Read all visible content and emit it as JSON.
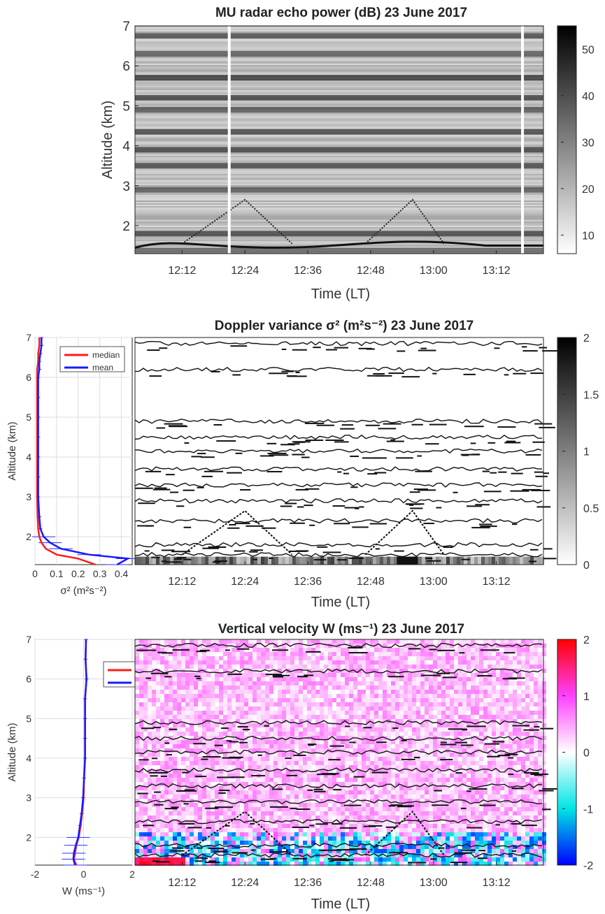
{
  "chart_data": [
    {
      "type": "heatmap",
      "title": "MU radar echo power (dB) 23 June 2017",
      "xlabel": "Time (LT)",
      "ylabel": "Altitude (km)",
      "xticks": [
        "12:12",
        "12:24",
        "12:36",
        "12:48",
        "13:00",
        "13:12"
      ],
      "xlim": [
        "12:03",
        "13:21"
      ],
      "yticks": [
        2,
        3,
        4,
        5,
        6,
        7
      ],
      "ylim": [
        1.3,
        7
      ],
      "colorbar": {
        "ticks": [
          10,
          20,
          30,
          40,
          50
        ],
        "range": [
          6,
          55
        ],
        "colormap": "white-to-black"
      },
      "data_gaps_at": [
        "12:21",
        "13:17"
      ],
      "echo_layers_km": [
        1.8,
        2.9,
        3.5,
        3.9,
        4.35,
        4.9,
        5.2,
        5.7,
        6.3,
        6.75
      ],
      "cusp_features": [
        {
          "start": "12:12",
          "peak": "12:24",
          "end": "12:33",
          "peak_km": 2.65
        },
        {
          "start": "12:47",
          "peak": "12:56",
          "end": "13:02",
          "peak_km": 2.65
        }
      ]
    },
    {
      "type": "heatmap",
      "title": "Doppler variance σ² (m²s⁻²) 23 June 2017",
      "xlabel": "Time (LT)",
      "ylabel": "",
      "xticks": [
        "12:12",
        "12:24",
        "12:36",
        "12:48",
        "13:00",
        "13:12"
      ],
      "colorbar": {
        "ticks": [
          0,
          0.5,
          1,
          1.5,
          2
        ],
        "range": [
          0,
          2
        ],
        "colormap": "white-to-black"
      },
      "profile": {
        "ylabel": "Altitude (km)",
        "xlabel": "σ² (m²s⁻²)",
        "xticks": [
          0,
          0.1,
          0.2,
          0.3,
          0.4
        ],
        "xlim": [
          0,
          0.45
        ],
        "yticks": [
          2,
          3,
          4,
          5,
          6,
          7
        ],
        "ylim": [
          1.3,
          7
        ],
        "legend": {
          "position": "top",
          "entries": [
            "median",
            "mean"
          ]
        },
        "altitude_km": [
          1.3,
          1.45,
          1.55,
          1.7,
          1.85,
          2.0,
          2.2,
          2.5,
          3.0,
          3.5,
          4.0,
          4.5,
          5.0,
          5.5,
          6.0,
          6.2,
          6.4,
          6.6,
          6.8,
          7.0
        ],
        "median": [
          0.28,
          0.2,
          0.1,
          0.05,
          0.03,
          0.02,
          0.015,
          0.012,
          0.01,
          0.01,
          0.01,
          0.01,
          0.01,
          0.01,
          0.01,
          0.01,
          0.015,
          0.015,
          0.02,
          0.02
        ],
        "mean": [
          0.38,
          0.43,
          0.25,
          0.12,
          0.07,
          0.04,
          0.025,
          0.02,
          0.015,
          0.015,
          0.015,
          0.015,
          0.015,
          0.015,
          0.015,
          0.02,
          0.02,
          0.025,
          0.03,
          0.03
        ]
      }
    },
    {
      "type": "heatmap",
      "title": "Vertical velocity W (ms⁻¹) 23 June 2017",
      "xlabel": "Time (LT)",
      "ylabel": "",
      "xticks": [
        "12:12",
        "12:24",
        "12:36",
        "12:48",
        "13:00",
        "13:12"
      ],
      "colorbar": {
        "ticks": [
          -2,
          -1,
          0,
          1,
          2
        ],
        "range": [
          -2,
          2
        ],
        "colormap": "blue-cyan-white-magenta-red"
      },
      "profile": {
        "ylabel": "Altitude (km)",
        "xlabel": "W (ms⁻¹)",
        "xticks": [
          -2,
          0,
          2
        ],
        "xlim": [
          -2,
          2
        ],
        "yticks": [
          2,
          3,
          4,
          5,
          6,
          7
        ],
        "ylim": [
          1.3,
          7
        ],
        "legend": {
          "position": "top-right",
          "entries": [
            "median",
            "mean"
          ]
        },
        "altitude_km": [
          1.3,
          1.45,
          1.6,
          1.8,
          2.0,
          2.3,
          2.6,
          3.0,
          3.5,
          4.0,
          4.5,
          5.0,
          5.5,
          6.0,
          6.5,
          7.0
        ],
        "median": [
          -0.3,
          -0.4,
          -0.35,
          -0.3,
          -0.2,
          -0.12,
          -0.06,
          0.0,
          0.02,
          0.06,
          0.06,
          0.06,
          0.06,
          0.12,
          0.08,
          0.1
        ],
        "mean": [
          -0.35,
          -0.42,
          -0.4,
          -0.32,
          -0.22,
          -0.15,
          -0.08,
          -0.02,
          0.02,
          0.06,
          0.06,
          0.06,
          0.06,
          0.12,
          0.08,
          0.1
        ]
      }
    }
  ]
}
